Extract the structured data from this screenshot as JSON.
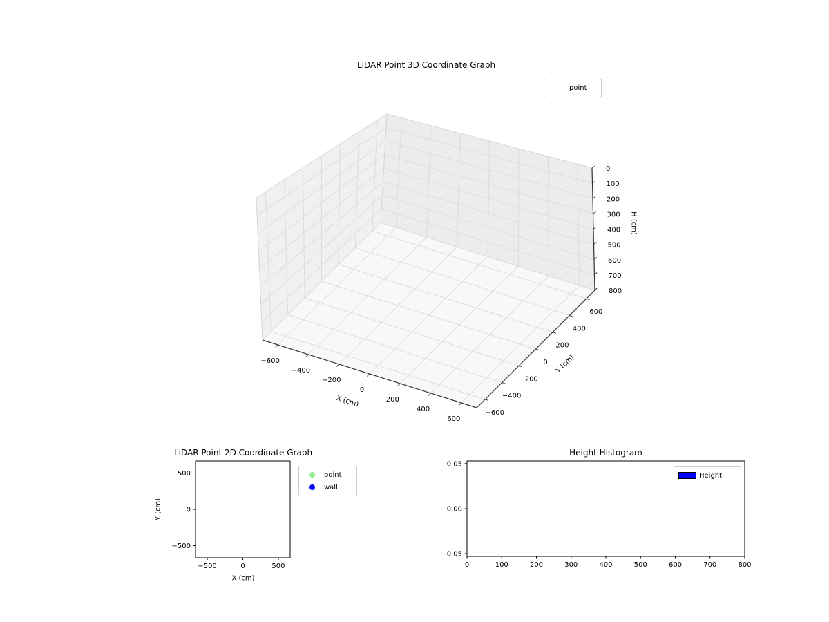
{
  "figure": {
    "background": "#ffffff"
  },
  "chart_data": [
    {
      "id": "lidar-3d",
      "type": "scatter3d",
      "title": "LiDAR Point 3D Coordinate Graph",
      "xlabel": "X (cm)",
      "ylabel": "Y (cm)",
      "zlabel": "H (cm)",
      "xlim": [
        -700,
        700
      ],
      "ylim": [
        -700,
        700
      ],
      "zlim": [
        0,
        800
      ],
      "z_axis_inverted": true,
      "grid": true,
      "xticks": [
        -600,
        -400,
        -200,
        0,
        200,
        400,
        600
      ],
      "xtick_labels": [
        "−600",
        "−400",
        "−200",
        "0",
        "200",
        "400",
        "600"
      ],
      "yticks": [
        -600,
        -400,
        -200,
        0,
        200,
        400,
        600
      ],
      "ytick_labels": [
        "−600",
        "−400",
        "−200",
        "0",
        "200",
        "400",
        "600"
      ],
      "zticks": [
        0,
        100,
        200,
        300,
        400,
        500,
        600,
        700,
        800
      ],
      "ztick_labels": [
        "0",
        "100",
        "200",
        "300",
        "400",
        "500",
        "600",
        "700",
        "800"
      ],
      "legend": {
        "position": "upper right",
        "entries": [
          {
            "label": "point",
            "marker": "none",
            "color": null
          }
        ]
      },
      "series": [
        {
          "name": "point",
          "points": []
        }
      ]
    },
    {
      "id": "lidar-2d",
      "type": "scatter",
      "title": "LiDAR Point 2D Coordinate Graph",
      "xlabel": "X (cm)",
      "ylabel": "Y (cm)",
      "xlim": [
        -666,
        666
      ],
      "ylim": [
        -666,
        666
      ],
      "grid": false,
      "xticks": [
        -500,
        0,
        500
      ],
      "xtick_labels": [
        "−500",
        "0",
        "500"
      ],
      "yticks": [
        -500,
        0,
        500
      ],
      "ytick_labels": [
        "−500",
        "0",
        "500"
      ],
      "legend": {
        "position": "outside upper right",
        "entries": [
          {
            "label": "point",
            "marker": "circle",
            "color": "#90ee90"
          },
          {
            "label": "wall",
            "marker": "circle",
            "color": "#0000ff"
          }
        ]
      },
      "series": [
        {
          "name": "point",
          "color": "#90ee90",
          "points": []
        },
        {
          "name": "wall",
          "color": "#0000ff",
          "points": []
        }
      ]
    },
    {
      "id": "height-histogram",
      "type": "bar",
      "title": "Height Histogram",
      "xlabel": "",
      "ylabel": "",
      "xlim": [
        0,
        800
      ],
      "ylim": [
        -0.053,
        0.053
      ],
      "grid": false,
      "xticks": [
        0,
        100,
        200,
        300,
        400,
        500,
        600,
        700,
        800
      ],
      "xtick_labels": [
        "0",
        "100",
        "200",
        "300",
        "400",
        "500",
        "600",
        "700",
        "800"
      ],
      "yticks": [
        -0.05,
        0.0,
        0.05
      ],
      "ytick_labels": [
        "−0.05",
        "0.00",
        "0.05"
      ],
      "legend": {
        "position": "upper right",
        "entries": [
          {
            "label": "Height",
            "marker": "rect",
            "color": "#0000ff"
          }
        ]
      },
      "values": []
    }
  ]
}
